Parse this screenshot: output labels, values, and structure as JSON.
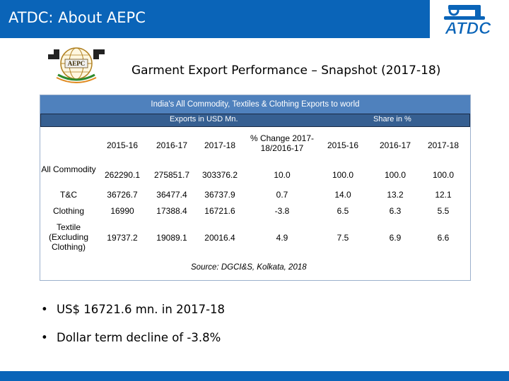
{
  "header": {
    "title": "ATDC: About AEPC",
    "atdc_logo_text": "ATDC",
    "aepc_logo_text": "AEPC"
  },
  "slide_title": "Garment Export Performance – Snapshot (2017-18)",
  "table": {
    "banner": "India's All Commodity, Textiles & Clothing Exports to world",
    "group_usd": "Exports in USD Mn.",
    "group_share": "Share in %",
    "columns": [
      "2015-16",
      "2016-17",
      "2017-18",
      "% Change 2017-18/2016-17",
      "2015-16",
      "2016-17",
      "2017-18"
    ],
    "rows": [
      {
        "label": "All Commodity",
        "values": [
          "262290.1",
          "275851.7",
          "303376.2",
          "10.0",
          "100.0",
          "100.0",
          "100.0"
        ]
      },
      {
        "label": "T&C",
        "values": [
          "36726.7",
          "36477.4",
          "36737.9",
          "0.7",
          "14.0",
          "13.2",
          "12.1"
        ]
      },
      {
        "label": "Clothing",
        "values": [
          "16990",
          "17388.4",
          "16721.6",
          "-3.8",
          "6.5",
          "6.3",
          "5.5"
        ]
      },
      {
        "label": "Textile (Excluding Clothing)",
        "values": [
          "19737.2",
          "19089.1",
          "20016.4",
          "4.9",
          "7.5",
          "6.9",
          "6.6"
        ]
      }
    ],
    "source": "Source: DGCI&S, Kolkata, 2018"
  },
  "bullets": [
    "US$ 16721.6 mn. in 2017-18",
    "Dollar term decline of -3.8%"
  ],
  "colors": {
    "brand_blue": "#0a64b8",
    "table_banner": "#4f81bd",
    "table_subbar": "#365f91"
  }
}
